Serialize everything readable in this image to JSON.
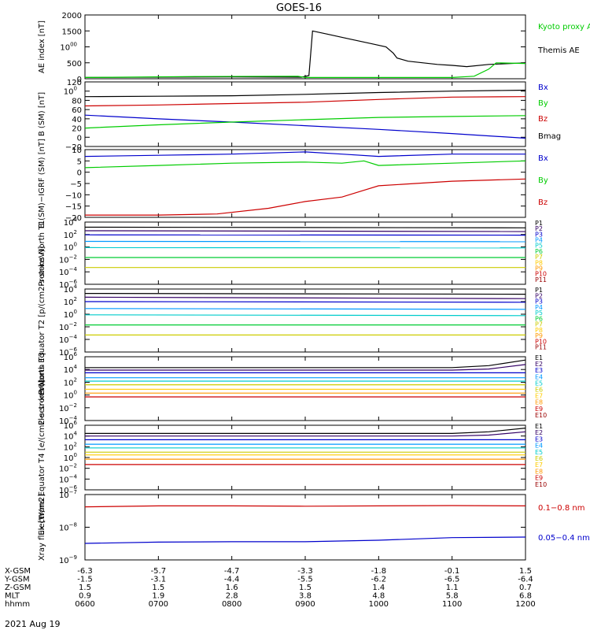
{
  "title": "GOES-16",
  "date_label": "2021 Aug 19",
  "orbit_table": {
    "rows": [
      {
        "label": "X-GSM",
        "values": [
          "-6.3",
          "-5.7",
          "-4.7",
          "-3.3",
          "-1.8",
          "-0.1",
          "1.5"
        ]
      },
      {
        "label": "Y-GSM",
        "values": [
          "-1.5",
          "-3.1",
          "-4.4",
          "-5.5",
          "-6.2",
          "-6.5",
          "-6.4"
        ]
      },
      {
        "label": "Z-GSM",
        "values": [
          "1.5",
          "1.5",
          "1.6",
          "1.5",
          "1.4",
          "1.1",
          "0.7"
        ]
      },
      {
        "label": "MLT",
        "values": [
          "0.9",
          "1.9",
          "2.8",
          "3.8",
          "4.8",
          "5.8",
          "6.8"
        ]
      },
      {
        "label": "hhmm",
        "values": [
          "0600",
          "0700",
          "0800",
          "0900",
          "1000",
          "1100",
          "1200"
        ]
      }
    ]
  },
  "colors": {
    "black": "#000000",
    "red": "#cc0000",
    "green": "#00cc00",
    "blue": "#0000cc",
    "P1": "#000000",
    "P2": "#330066",
    "P3": "#0000cc",
    "P4": "#0099ff",
    "P5": "#00cccc",
    "P6": "#00cc33",
    "P7": "#cccc00",
    "P8": "#ffcc00",
    "P9": "#ff9900",
    "P10": "#cc0000",
    "P11": "#990000",
    "E1": "#000000",
    "E2": "#330066",
    "E3": "#0000cc",
    "E4": "#0099ff",
    "E5": "#00cccc",
    "E6": "#cccc00",
    "E7": "#ffcc00",
    "E8": "#ff9900",
    "E9": "#cc0000",
    "E10": "#990000"
  },
  "chart_data": [
    {
      "type": "line",
      "ylabel": "AE index [nT]",
      "ylim": [
        0,
        2000
      ],
      "yticks": [
        "0",
        "500",
        "1000",
        "1500",
        "2000"
      ],
      "x_range_hours": [
        6,
        12
      ],
      "legend": [
        "Kyoto proxy AE",
        "Themis AE"
      ],
      "series": [
        {
          "name": "Themis AE",
          "x": [
            6.0,
            8.0,
            8.95,
            9.05,
            9.1,
            9.3,
            9.6,
            9.9,
            10.1,
            10.2,
            10.25,
            10.4,
            10.8,
            11.0,
            11.2,
            11.5,
            12.0
          ],
          "y": [
            40,
            60,
            50,
            100,
            1500,
            1400,
            1250,
            1100,
            1000,
            800,
            650,
            550,
            450,
            420,
            380,
            450,
            500
          ]
        },
        {
          "name": "Kyoto proxy AE",
          "x": [
            6.0,
            7.5,
            8.9,
            9.0,
            10.0,
            11.0,
            11.3,
            11.5,
            11.6,
            12.0
          ],
          "y": [
            40,
            70,
            80,
            40,
            40,
            40,
            80,
            300,
            500,
            480
          ]
        }
      ]
    },
    {
      "type": "line",
      "ylabel": "B (SM) [nT]",
      "ylim": [
        -20,
        120
      ],
      "yticks": [
        "−20",
        "0",
        "20",
        "40",
        "60",
        "80",
        "100",
        "120"
      ],
      "legend": [
        "Bx",
        "By",
        "Bz",
        "Bmag"
      ],
      "series": [
        {
          "name": "Bx",
          "x": [
            6,
            7,
            8,
            9,
            10,
            11,
            12
          ],
          "y": [
            48,
            40,
            33,
            25,
            17,
            8,
            -2
          ]
        },
        {
          "name": "By",
          "x": [
            6,
            7,
            8,
            9,
            10,
            11,
            12
          ],
          "y": [
            20,
            27,
            33,
            38,
            43,
            45,
            47
          ]
        },
        {
          "name": "Bz",
          "x": [
            6,
            7,
            8,
            9,
            10,
            11,
            12
          ],
          "y": [
            68,
            70,
            73,
            76,
            82,
            87,
            88
          ]
        },
        {
          "name": "Bmag",
          "x": [
            6,
            7,
            8,
            9,
            10,
            11,
            12
          ],
          "y": [
            88,
            89,
            90,
            93,
            97,
            100,
            102
          ]
        }
      ]
    },
    {
      "type": "line",
      "ylabel": "B (SM)−IGRF (SM) [nT]",
      "ylim": [
        -20,
        10
      ],
      "yticks": [
        "−20",
        "−15",
        "−10",
        "−5",
        "0",
        "5",
        "10"
      ],
      "legend": [
        "Bx",
        "By",
        "Bz"
      ],
      "series": [
        {
          "name": "Bx",
          "x": [
            6,
            7,
            8,
            9,
            9.5,
            10,
            11,
            12
          ],
          "y": [
            7,
            7.5,
            8,
            9,
            8,
            7,
            8,
            8
          ]
        },
        {
          "name": "By",
          "x": [
            6,
            7,
            8,
            9,
            9.5,
            9.8,
            10,
            11,
            12
          ],
          "y": [
            2,
            3,
            4,
            4.5,
            4,
            5,
            3,
            4,
            5
          ]
        },
        {
          "name": "Bz",
          "x": [
            6,
            7,
            7.8,
            8.5,
            9,
            9.5,
            9.8,
            10,
            10.5,
            11,
            12
          ],
          "y": [
            -19,
            -19,
            -18.5,
            -16,
            -13,
            -11,
            -8,
            -6,
            -5,
            -4,
            -3
          ]
        }
      ]
    },
    {
      "type": "line",
      "ylabel": "Protons North T1",
      "yscale": "log",
      "ylim": [
        1e-06,
        10000.0
      ],
      "yticks": [
        "10−6",
        "10−4",
        "10−2",
        "100",
        "102",
        "104"
      ],
      "legend": [
        "P1",
        "P2",
        "P3",
        "P4",
        "P5",
        "P6",
        "P7",
        "P8",
        "P9",
        "P10",
        "P11"
      ],
      "series": [
        {
          "name": "P1",
          "x": [
            6,
            12
          ],
          "y": [
            1500,
            1200
          ]
        },
        {
          "name": "P2",
          "x": [
            6,
            12
          ],
          "y": [
            400,
            300
          ]
        },
        {
          "name": "P3",
          "x": [
            6,
            12
          ],
          "y": [
            90,
            80
          ]
        },
        {
          "name": "P4",
          "x": [
            6,
            12
          ],
          "y": [
            8,
            7
          ]
        },
        {
          "name": "P5",
          "x": [
            6,
            12
          ],
          "y": [
            0.8,
            0.7
          ]
        },
        {
          "name": "P6",
          "x": [
            6,
            12
          ],
          "y": [
            0.02,
            0.02
          ]
        },
        {
          "name": "P7",
          "x": [
            6,
            12
          ],
          "y": [
            0.0005,
            0.0005
          ]
        }
      ]
    },
    {
      "type": "line",
      "ylabel": "Protons Equator T2 [p/(cm2-s-sr-keV)]",
      "yscale": "log",
      "ylim": [
        1e-06,
        10000.0
      ],
      "yticks": [
        "10−6",
        "10−4",
        "10−2",
        "100",
        "102",
        "104"
      ],
      "legend": [
        "P1",
        "P2",
        "P3",
        "P4",
        "P5",
        "P6",
        "P7",
        "P8",
        "P9",
        "P10",
        "P11"
      ],
      "series": [
        {
          "name": "P1",
          "x": [
            6,
            12
          ],
          "y": [
            2000,
            1500
          ]
        },
        {
          "name": "P2",
          "x": [
            6,
            12
          ],
          "y": [
            500,
            300
          ]
        },
        {
          "name": "P3",
          "x": [
            6,
            12
          ],
          "y": [
            100,
            80
          ]
        },
        {
          "name": "P4",
          "x": [
            6,
            12
          ],
          "y": [
            8,
            6
          ]
        },
        {
          "name": "P5",
          "x": [
            6,
            12
          ],
          "y": [
            0.8,
            0.6
          ]
        },
        {
          "name": "P6",
          "x": [
            6,
            12
          ],
          "y": [
            0.02,
            0.02
          ]
        },
        {
          "name": "P7",
          "x": [
            6,
            12
          ],
          "y": [
            0.0005,
            0.0005
          ]
        }
      ]
    },
    {
      "type": "line",
      "ylabel": "Electrons North T3",
      "yscale": "log",
      "ylim": [
        0.0001,
        1000000.0
      ],
      "yticks": [
        "10−4",
        "10−2",
        "100",
        "102",
        "104",
        "106"
      ],
      "legend": [
        "E1",
        "E2",
        "E3",
        "E4",
        "E5",
        "E6",
        "E7",
        "E8",
        "E9",
        "E10"
      ],
      "series": [
        {
          "name": "E1",
          "x": [
            6,
            11,
            11.5,
            12
          ],
          "y": [
            20000,
            20000,
            40000,
            300000
          ]
        },
        {
          "name": "E2",
          "x": [
            6,
            11,
            11.5,
            12
          ],
          "y": [
            8000,
            8000,
            12000,
            60000
          ]
        },
        {
          "name": "E3",
          "x": [
            6,
            12
          ],
          "y": [
            3000,
            3000
          ]
        },
        {
          "name": "E4",
          "x": [
            6,
            12
          ],
          "y": [
            500,
            500
          ]
        },
        {
          "name": "E5",
          "x": [
            6,
            12
          ],
          "y": [
            150,
            150
          ]
        },
        {
          "name": "E6",
          "x": [
            6,
            12
          ],
          "y": [
            40,
            40
          ]
        },
        {
          "name": "E7",
          "x": [
            6,
            12
          ],
          "y": [
            8,
            8
          ]
        },
        {
          "name": "E8",
          "x": [
            6,
            12
          ],
          "y": [
            2,
            2
          ]
        },
        {
          "name": "E9",
          "x": [
            6,
            12
          ],
          "y": [
            0.5,
            0.5
          ]
        }
      ]
    },
    {
      "type": "line",
      "ylabel": "Electrons Equator T4 [e/(cm2-s-sr-keV)]",
      "yscale": "log",
      "ylim": [
        1e-06,
        1000000.0
      ],
      "yticks": [
        "10−6",
        "10−4",
        "10−2",
        "100",
        "102",
        "104",
        "106"
      ],
      "legend": [
        "E1",
        "E2",
        "E3",
        "E4",
        "E5",
        "E6",
        "E7",
        "E8",
        "E9",
        "E10"
      ],
      "series": [
        {
          "name": "E1",
          "x": [
            6,
            11,
            11.5,
            12
          ],
          "y": [
            30000,
            30000,
            60000,
            300000
          ]
        },
        {
          "name": "E2",
          "x": [
            6,
            11,
            11.5,
            12
          ],
          "y": [
            10000,
            10000,
            15000,
            60000
          ]
        },
        {
          "name": "E3",
          "x": [
            6,
            12
          ],
          "y": [
            2000,
            2000
          ]
        },
        {
          "name": "E4",
          "x": [
            6,
            12
          ],
          "y": [
            300,
            300
          ]
        },
        {
          "name": "E5",
          "x": [
            6,
            12
          ],
          "y": [
            60,
            60
          ]
        },
        {
          "name": "E6",
          "x": [
            6,
            12
          ],
          "y": [
            10,
            10
          ]
        },
        {
          "name": "E7",
          "x": [
            6,
            12
          ],
          "y": [
            3,
            3
          ]
        },
        {
          "name": "E8",
          "x": [
            6,
            12
          ],
          "y": [
            0.5,
            0.5
          ]
        },
        {
          "name": "E9",
          "x": [
            6,
            12
          ],
          "y": [
            0.05,
            0.05
          ]
        }
      ]
    },
    {
      "type": "line",
      "ylabel": "Xray flux [W/m2]",
      "yscale": "log",
      "ylim": [
        1e-09,
        1e-07
      ],
      "yticks": [
        "10−9",
        "10−8",
        "10−7"
      ],
      "legend": [
        "0.1−0.8 nm",
        "0.05−0.4 nm"
      ],
      "series": [
        {
          "name": "0.1−0.8 nm",
          "x": [
            6,
            7,
            8,
            9,
            10,
            11,
            12
          ],
          "y": [
            4.2e-08,
            4.5e-08,
            4.5e-08,
            4.4e-08,
            4.5e-08,
            4.6e-08,
            4.5e-08
          ]
        },
        {
          "name": "0.05−0.4 nm",
          "x": [
            6,
            7,
            8,
            9,
            10,
            11,
            12
          ],
          "y": [
            3.2e-09,
            3.5e-09,
            3.6e-09,
            3.6e-09,
            4e-09,
            4.8e-09,
            5e-09
          ]
        }
      ]
    }
  ]
}
